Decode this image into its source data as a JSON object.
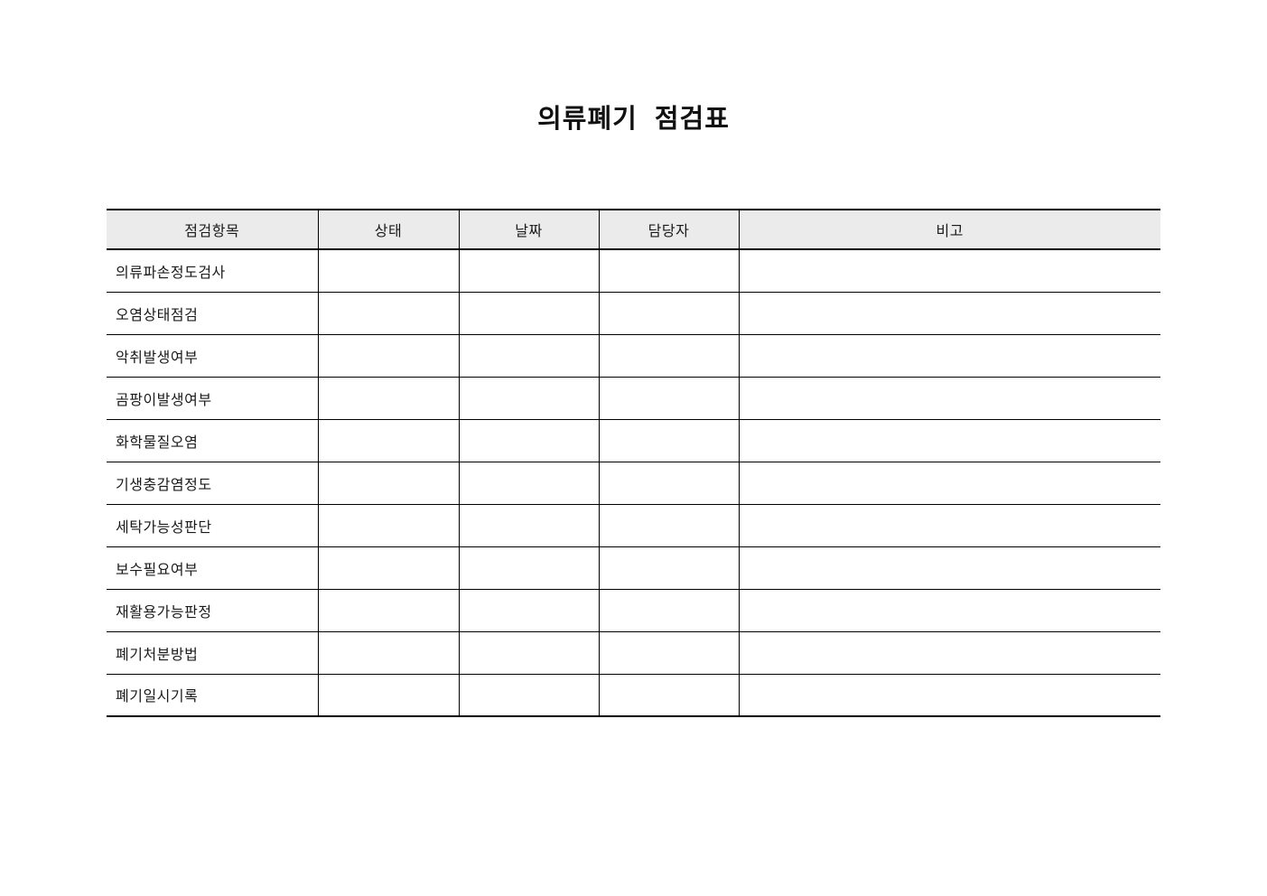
{
  "page": {
    "title": "의류폐기 점검표"
  },
  "table": {
    "headers": [
      "점검항목",
      "상태",
      "날짜",
      "담당자",
      "비고"
    ],
    "rows": [
      {
        "item": "의류파손정도검사",
        "status": "",
        "date": "",
        "manager": "",
        "notes": ""
      },
      {
        "item": "오염상태점검",
        "status": "",
        "date": "",
        "manager": "",
        "notes": ""
      },
      {
        "item": "악취발생여부",
        "status": "",
        "date": "",
        "manager": "",
        "notes": ""
      },
      {
        "item": "곰팡이발생여부",
        "status": "",
        "date": "",
        "manager": "",
        "notes": ""
      },
      {
        "item": "화학물질오염",
        "status": "",
        "date": "",
        "manager": "",
        "notes": ""
      },
      {
        "item": "기생충감염정도",
        "status": "",
        "date": "",
        "manager": "",
        "notes": ""
      },
      {
        "item": "세탁가능성판단",
        "status": "",
        "date": "",
        "manager": "",
        "notes": ""
      },
      {
        "item": "보수필요여부",
        "status": "",
        "date": "",
        "manager": "",
        "notes": ""
      },
      {
        "item": "재활용가능판정",
        "status": "",
        "date": "",
        "manager": "",
        "notes": ""
      },
      {
        "item": "폐기처분방법",
        "status": "",
        "date": "",
        "manager": "",
        "notes": ""
      },
      {
        "item": "폐기일시기록",
        "status": "",
        "date": "",
        "manager": "",
        "notes": ""
      }
    ],
    "colors": {
      "header_bg": "#ebebeb",
      "border": "#000000",
      "text": "#1a1a1a"
    }
  }
}
